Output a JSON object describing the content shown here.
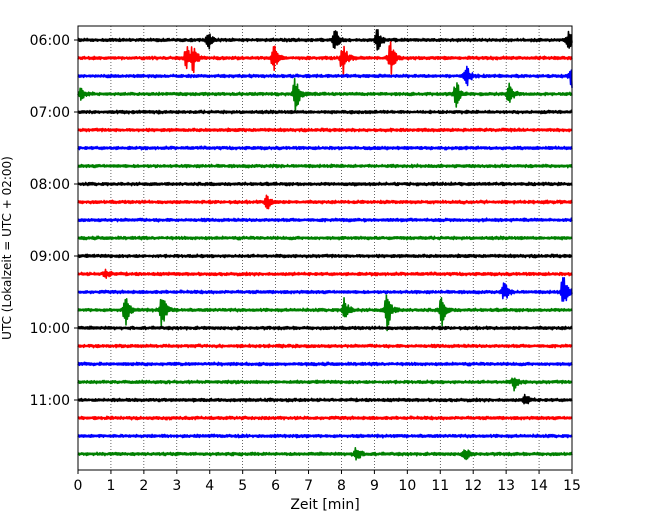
{
  "chart_data": {
    "type": "line",
    "title": "",
    "xlabel": "Zeit  [min]",
    "ylabel": "UTC (Lokalzeit = UTC + 02:00)",
    "xlim": [
      0,
      15
    ],
    "x_ticks": [
      "0",
      "1",
      "2",
      "3",
      "4",
      "5",
      "6",
      "7",
      "8",
      "9",
      "10",
      "11",
      "12",
      "13",
      "14",
      "15"
    ],
    "y_ticks": [
      "06:00",
      "07:00",
      "08:00",
      "09:00",
      "10:00",
      "11:00"
    ],
    "grid": "vertical dotted",
    "trace_colors": [
      "#000000",
      "#ff0000",
      "#0000ff",
      "#008000"
    ],
    "rows": [
      {
        "time": "06:00",
        "color": "#000000",
        "events": [
          {
            "t": 3.95,
            "amp": 0.9
          },
          {
            "t": 7.8,
            "amp": 1.1
          },
          {
            "t": 9.1,
            "amp": 1.0
          },
          {
            "t": 14.9,
            "amp": 0.8
          }
        ]
      },
      {
        "time": "06:15",
        "color": "#ff0000",
        "events": [
          {
            "t": 3.3,
            "amp": 1.0
          },
          {
            "t": 3.5,
            "amp": 1.1
          },
          {
            "t": 5.95,
            "amp": 1.1
          },
          {
            "t": 8.05,
            "amp": 1.4
          },
          {
            "t": 9.5,
            "amp": 1.5
          }
        ]
      },
      {
        "time": "06:30",
        "color": "#0000ff",
        "events": [
          {
            "t": 11.8,
            "amp": 1.0
          },
          {
            "t": 15.0,
            "amp": 1.2
          }
        ]
      },
      {
        "time": "06:45",
        "color": "#008000",
        "events": [
          {
            "t": 0.1,
            "amp": 0.6
          },
          {
            "t": 6.6,
            "amp": 1.8
          },
          {
            "t": 11.5,
            "amp": 1.1
          },
          {
            "t": 13.1,
            "amp": 1.0
          }
        ]
      },
      {
        "time": "07:00",
        "color": "#000000",
        "events": []
      },
      {
        "time": "07:15",
        "color": "#ff0000",
        "events": []
      },
      {
        "time": "07:30",
        "color": "#0000ff",
        "events": []
      },
      {
        "time": "07:45",
        "color": "#008000",
        "events": []
      },
      {
        "time": "08:00",
        "color": "#000000",
        "events": []
      },
      {
        "time": "08:15",
        "color": "#ff0000",
        "events": [
          {
            "t": 5.75,
            "amp": 0.7
          }
        ]
      },
      {
        "time": "08:30",
        "color": "#0000ff",
        "events": []
      },
      {
        "time": "08:45",
        "color": "#008000",
        "events": []
      },
      {
        "time": "09:00",
        "color": "#000000",
        "events": []
      },
      {
        "time": "09:15",
        "color": "#ff0000",
        "events": [
          {
            "t": 0.85,
            "amp": 0.4
          }
        ]
      },
      {
        "time": "09:30",
        "color": "#0000ff",
        "events": [
          {
            "t": 12.95,
            "amp": 0.8
          },
          {
            "t": 14.75,
            "amp": 1.4
          }
        ]
      },
      {
        "time": "09:45",
        "color": "#008000",
        "events": [
          {
            "t": 1.45,
            "amp": 1.2
          },
          {
            "t": 2.55,
            "amp": 1.6
          },
          {
            "t": 8.1,
            "amp": 1.1
          },
          {
            "t": 9.4,
            "amp": 1.9
          },
          {
            "t": 11.05,
            "amp": 1.2
          }
        ]
      },
      {
        "time": "10:00",
        "color": "#000000",
        "events": []
      },
      {
        "time": "10:15",
        "color": "#ff0000",
        "events": []
      },
      {
        "time": "10:30",
        "color": "#0000ff",
        "events": []
      },
      {
        "time": "10:45",
        "color": "#008000",
        "events": [
          {
            "t": 13.25,
            "amp": 0.6
          }
        ]
      },
      {
        "time": "11:00",
        "color": "#000000",
        "events": [
          {
            "t": 13.6,
            "amp": 0.5
          }
        ]
      },
      {
        "time": "11:15",
        "color": "#ff0000",
        "events": []
      },
      {
        "time": "11:30",
        "color": "#0000ff",
        "events": []
      },
      {
        "time": "11:45",
        "color": "#008000",
        "events": [
          {
            "t": 8.45,
            "amp": 0.7
          },
          {
            "t": 11.75,
            "amp": 0.6
          }
        ]
      }
    ]
  }
}
